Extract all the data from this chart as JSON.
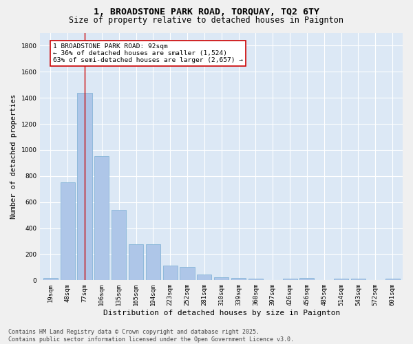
{
  "title1": "1, BROADSTONE PARK ROAD, TORQUAY, TQ2 6TY",
  "title2": "Size of property relative to detached houses in Paignton",
  "xlabel": "Distribution of detached houses by size in Paignton",
  "ylabel": "Number of detached properties",
  "categories": [
    "19sqm",
    "48sqm",
    "77sqm",
    "106sqm",
    "135sqm",
    "165sqm",
    "194sqm",
    "223sqm",
    "252sqm",
    "281sqm",
    "310sqm",
    "339sqm",
    "368sqm",
    "397sqm",
    "426sqm",
    "456sqm",
    "485sqm",
    "514sqm",
    "543sqm",
    "572sqm",
    "601sqm"
  ],
  "values": [
    20,
    750,
    1440,
    950,
    540,
    275,
    275,
    115,
    100,
    45,
    25,
    15,
    10,
    0,
    10,
    15,
    0,
    10,
    10,
    0,
    10
  ],
  "bar_color": "#aec6e8",
  "bar_edge_color": "#7aafd4",
  "vline_x": 2,
  "vline_color": "#cc0000",
  "annotation_text": "1 BROADSTONE PARK ROAD: 92sqm\n← 36% of detached houses are smaller (1,524)\n63% of semi-detached houses are larger (2,657) →",
  "annotation_box_color": "#cc0000",
  "ylim": [
    0,
    1900
  ],
  "yticks": [
    0,
    200,
    400,
    600,
    800,
    1000,
    1200,
    1400,
    1600,
    1800
  ],
  "background_color": "#dce8f5",
  "grid_color": "#ffffff",
  "footer": "Contains HM Land Registry data © Crown copyright and database right 2025.\nContains public sector information licensed under the Open Government Licence v3.0.",
  "title1_fontsize": 9.5,
  "title2_fontsize": 8.5,
  "xlabel_fontsize": 8,
  "ylabel_fontsize": 7.5,
  "tick_fontsize": 6.5,
  "footer_fontsize": 6,
  "annot_fontsize": 6.8
}
